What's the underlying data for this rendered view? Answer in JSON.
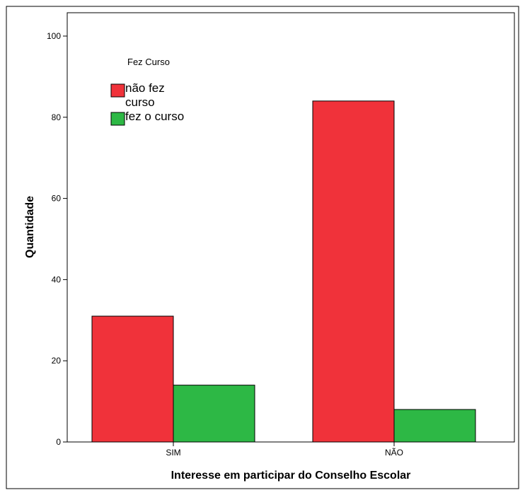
{
  "chart_data": {
    "type": "bar",
    "title": "",
    "xlabel": "Interesse em participar do Conselho Escolar",
    "ylabel": "Quantidade",
    "categories": [
      "SIM",
      "NÃO"
    ],
    "ylim": [
      0,
      100
    ],
    "yticks": [
      0,
      20,
      40,
      60,
      80,
      100
    ],
    "grid": false,
    "legend": {
      "title": "Fez Curso",
      "placement": "top-left"
    },
    "series": [
      {
        "name": "não fez curso",
        "name_lines": [
          "não fez",
          "curso"
        ],
        "color": "#f0323a",
        "values": [
          31,
          84
        ]
      },
      {
        "name": "fez  o curso",
        "name_lines": [
          "fez  o curso"
        ],
        "color": "#2db845",
        "values": [
          14,
          8
        ]
      }
    ]
  }
}
